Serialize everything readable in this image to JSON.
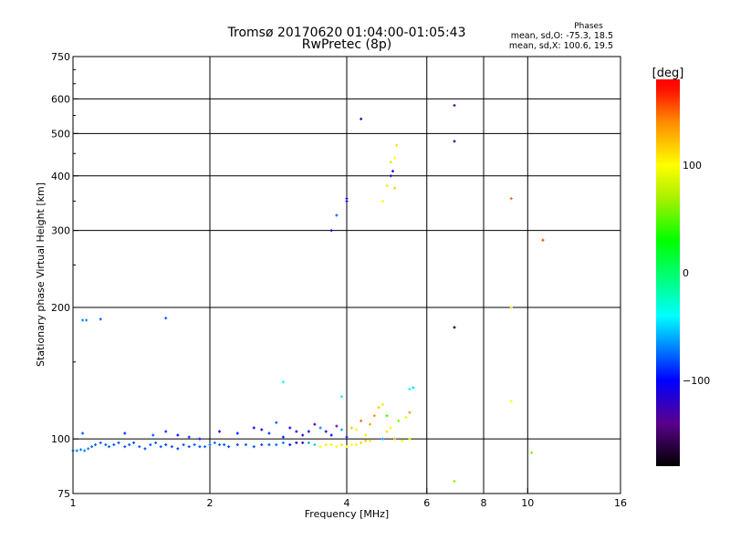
{
  "chart_data": {
    "type": "scatter",
    "title": "Tromsø 20170620 01:04:00-01:05:43",
    "subtitle": "RwPretec (8p)",
    "stats": {
      "heading": "Phases",
      "line_o": "mean, sd,O: -75.3, 18.5",
      "line_x": "mean, sd,X: 100.6, 19.5"
    },
    "xlabel": "Frequency [MHz]",
    "ylabel": "Stationary phase Virtual Height [km]",
    "xscale": "log",
    "yscale": "log",
    "xlim": [
      1,
      16
    ],
    "ylim": [
      75,
      750
    ],
    "xticks": [
      1,
      2,
      4,
      6,
      8,
      10,
      16
    ],
    "yticks": [
      75,
      100,
      200,
      300,
      400,
      500,
      600,
      750
    ],
    "xgrid": [
      2,
      4,
      6,
      8,
      10
    ],
    "ygrid": [
      100,
      200,
      300,
      400,
      500,
      600
    ],
    "colorbar": {
      "label": "[deg]",
      "range": [
        -180,
        180
      ],
      "ticks": [
        100,
        0,
        -100
      ]
    },
    "points_fields": [
      "frequency_MHz",
      "height_km",
      "phase_deg"
    ],
    "points": [
      [
        1.0,
        94,
        -70
      ],
      [
        1.02,
        94,
        -70
      ],
      [
        1.04,
        94.5,
        -72
      ],
      [
        1.06,
        94,
        -70
      ],
      [
        1.08,
        95,
        -72
      ],
      [
        1.1,
        96,
        -75
      ],
      [
        1.12,
        97,
        -78
      ],
      [
        1.15,
        98,
        -80
      ],
      [
        1.18,
        97,
        -78
      ],
      [
        1.2,
        96,
        -76
      ],
      [
        1.23,
        97,
        -80
      ],
      [
        1.26,
        98,
        -82
      ],
      [
        1.3,
        96,
        -80
      ],
      [
        1.33,
        97,
        -78
      ],
      [
        1.36,
        98,
        -82
      ],
      [
        1.4,
        96,
        -80
      ],
      [
        1.44,
        95,
        -85
      ],
      [
        1.48,
        97,
        -80
      ],
      [
        1.52,
        98,
        -78
      ],
      [
        1.56,
        96,
        -80
      ],
      [
        1.6,
        97,
        -85
      ],
      [
        1.65,
        96,
        -82
      ],
      [
        1.7,
        95,
        -88
      ],
      [
        1.75,
        97,
        -80
      ],
      [
        1.8,
        96,
        -82
      ],
      [
        1.85,
        97,
        -78
      ],
      [
        1.9,
        96,
        -80
      ],
      [
        1.95,
        96,
        -76
      ],
      [
        2.0,
        97,
        -72
      ],
      [
        2.05,
        98,
        -75
      ],
      [
        2.1,
        97,
        -78
      ],
      [
        2.15,
        97,
        -80
      ],
      [
        2.2,
        96,
        -82
      ],
      [
        2.3,
        97,
        -85
      ],
      [
        2.4,
        97,
        -80
      ],
      [
        2.5,
        96,
        -82
      ],
      [
        2.6,
        97,
        -85
      ],
      [
        2.7,
        97,
        -80
      ],
      [
        2.8,
        97,
        -75
      ],
      [
        2.9,
        98,
        -70
      ],
      [
        3.0,
        97,
        -95
      ],
      [
        3.1,
        98,
        -110
      ],
      [
        3.2,
        98,
        -120
      ],
      [
        3.3,
        98,
        -60
      ],
      [
        3.4,
        97,
        -50
      ],
      [
        3.5,
        96,
        100
      ],
      [
        3.6,
        97,
        105
      ],
      [
        3.7,
        97,
        95
      ],
      [
        3.8,
        96,
        100
      ],
      [
        3.9,
        97,
        110
      ],
      [
        4.0,
        96,
        95
      ],
      [
        4.1,
        97,
        100
      ],
      [
        4.2,
        97,
        105
      ],
      [
        4.3,
        98,
        115
      ],
      [
        4.4,
        99,
        120
      ],
      [
        4.5,
        99,
        110
      ],
      [
        1.05,
        103,
        -80
      ],
      [
        1.3,
        103,
        -90
      ],
      [
        1.5,
        102,
        -80
      ],
      [
        1.6,
        104,
        -90
      ],
      [
        1.7,
        102,
        -100
      ],
      [
        1.8,
        101,
        -90
      ],
      [
        1.9,
        100,
        -95
      ],
      [
        2.1,
        104,
        -100
      ],
      [
        2.3,
        103,
        -95
      ],
      [
        2.5,
        106,
        -100
      ],
      [
        2.6,
        105,
        -100
      ],
      [
        2.7,
        103,
        -90
      ],
      [
        2.8,
        109,
        -80
      ],
      [
        2.9,
        101,
        -95
      ],
      [
        3.0,
        106,
        -110
      ],
      [
        3.1,
        104,
        -120
      ],
      [
        3.2,
        102,
        -120
      ],
      [
        3.3,
        104,
        -110
      ],
      [
        3.4,
        108,
        -130
      ],
      [
        3.5,
        106,
        -70
      ],
      [
        3.6,
        104,
        -110
      ],
      [
        3.7,
        102,
        -100
      ],
      [
        3.8,
        107,
        -140
      ],
      [
        3.9,
        105,
        -60
      ],
      [
        4.0,
        101,
        -110
      ],
      [
        4.1,
        106,
        120
      ],
      [
        4.2,
        105,
        100
      ],
      [
        4.3,
        110,
        150
      ],
      [
        4.4,
        102,
        90
      ],
      [
        4.5,
        108,
        130
      ],
      [
        4.6,
        113,
        140
      ],
      [
        4.7,
        118,
        120
      ],
      [
        4.8,
        120,
        90
      ],
      [
        4.9,
        104,
        110
      ],
      [
        5.0,
        106,
        100
      ],
      [
        5.2,
        110,
        60
      ],
      [
        5.4,
        112,
        90
      ],
      [
        5.5,
        115,
        140
      ],
      [
        5.5,
        130,
        -40
      ],
      [
        5.6,
        131,
        -50
      ],
      [
        4.9,
        113,
        40
      ],
      [
        4.8,
        100,
        -60
      ],
      [
        5.1,
        100,
        130
      ],
      [
        5.3,
        99,
        100
      ],
      [
        5.5,
        100,
        80
      ],
      [
        2.9,
        135,
        -40
      ],
      [
        3.9,
        125,
        -30
      ],
      [
        1.05,
        187,
        -70
      ],
      [
        1.07,
        187,
        -70
      ],
      [
        1.15,
        188,
        -80
      ],
      [
        1.6,
        189,
        -80
      ],
      [
        3.8,
        325,
        -80
      ],
      [
        3.7,
        300,
        -100
      ],
      [
        4.0,
        350,
        -110
      ],
      [
        4.0,
        355,
        -120
      ],
      [
        4.3,
        540,
        -120
      ],
      [
        4.8,
        350,
        100
      ],
      [
        4.9,
        380,
        90
      ],
      [
        5.0,
        400,
        -120
      ],
      [
        5.05,
        410,
        -110
      ],
      [
        5.1,
        440,
        100
      ],
      [
        5.15,
        470,
        110
      ],
      [
        5.0,
        430,
        80
      ],
      [
        5.1,
        375,
        120
      ],
      [
        6.9,
        580,
        -140
      ],
      [
        6.9,
        480,
        -150
      ],
      [
        6.9,
        180,
        -170
      ],
      [
        6.9,
        80,
        60
      ],
      [
        9.2,
        355,
        150
      ],
      [
        9.2,
        200,
        110
      ],
      [
        9.2,
        122,
        100
      ],
      [
        10.8,
        285,
        160
      ],
      [
        10.2,
        93,
        60
      ]
    ]
  }
}
